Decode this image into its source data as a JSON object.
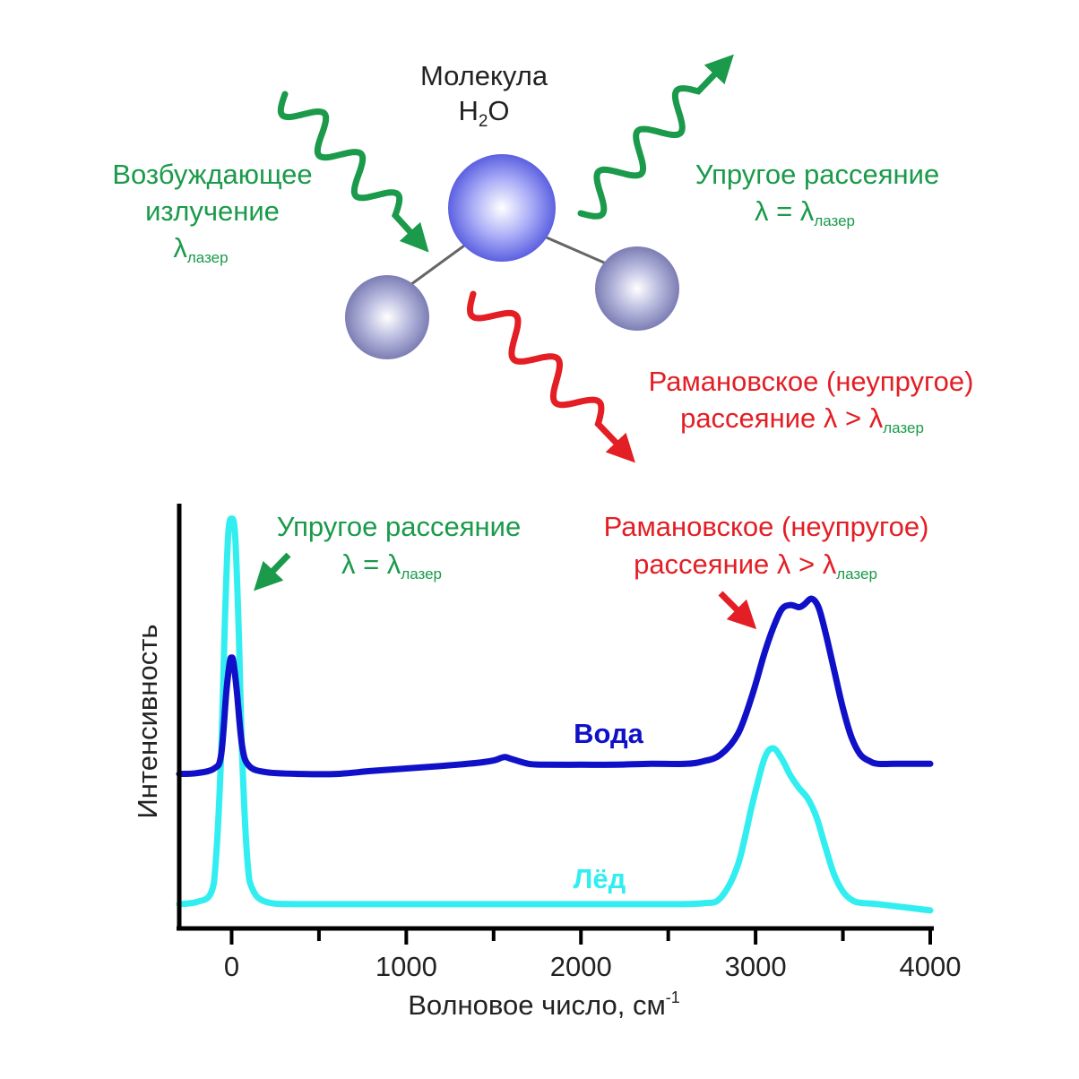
{
  "colors": {
    "green": "#1a9a4a",
    "red": "#e31e24",
    "water": "#1010c8",
    "ice": "#33eef0",
    "axis": "#000000",
    "text": "#222222",
    "bond": "#666666",
    "atom_big": "#8a8ef0",
    "atom_small": "#a6a8d6"
  },
  "diagram": {
    "molecule_label_line1": "Молекула",
    "molecule_label_h": "H",
    "molecule_label_sub": "2",
    "molecule_label_o": "O",
    "excitation_line1": "Возбуждающее",
    "excitation_line2": "излучение",
    "lambda": "λ",
    "laser_sub": "лазер",
    "elastic_title": "Упругое рассеяние",
    "elastic_eq": "λ = λ",
    "raman_line1": "Рамановское (неупругое)",
    "raman_line2": "рассеяние λ > λ"
  },
  "chart_data": {
    "type": "line",
    "xlabel": "Волновое число, см",
    "xlabel_sup": "-1",
    "ylabel": "Интенсивность",
    "xlim": [
      -300,
      4000
    ],
    "ylim": [
      0,
      100
    ],
    "xticks": [
      0,
      1000,
      2000,
      3000,
      4000
    ],
    "minor_ticks": [
      500,
      1500,
      2500,
      3500
    ],
    "series": [
      {
        "name": "Вода",
        "color": "#1010c8",
        "points": [
          [
            -300,
            35.4
          ],
          [
            -200,
            35.6
          ],
          [
            -100,
            36.7
          ],
          [
            -60,
            40
          ],
          [
            -30,
            55
          ],
          [
            -10,
            62
          ],
          [
            0,
            63
          ],
          [
            10,
            62
          ],
          [
            30,
            55
          ],
          [
            60,
            42
          ],
          [
            100,
            37.3
          ],
          [
            200,
            35.8
          ],
          [
            400,
            35.4
          ],
          [
            600,
            35.4
          ],
          [
            800,
            36.1
          ],
          [
            1000,
            36.7
          ],
          [
            1200,
            37.3
          ],
          [
            1400,
            38
          ],
          [
            1500,
            38.6
          ],
          [
            1560,
            39.4
          ],
          [
            1600,
            39
          ],
          [
            1700,
            37.8
          ],
          [
            1800,
            37.6
          ],
          [
            2000,
            37.6
          ],
          [
            2200,
            37.6
          ],
          [
            2400,
            37.8
          ],
          [
            2600,
            37.8
          ],
          [
            2700,
            38.4
          ],
          [
            2800,
            40
          ],
          [
            2900,
            45
          ],
          [
            2980,
            54
          ],
          [
            3050,
            64
          ],
          [
            3100,
            70
          ],
          [
            3150,
            74.5
          ],
          [
            3200,
            75.5
          ],
          [
            3250,
            75
          ],
          [
            3280,
            75.7
          ],
          [
            3320,
            77
          ],
          [
            3360,
            75
          ],
          [
            3400,
            69
          ],
          [
            3450,
            60
          ],
          [
            3500,
            51
          ],
          [
            3550,
            44
          ],
          [
            3600,
            40
          ],
          [
            3650,
            38.5
          ],
          [
            3700,
            37.8
          ],
          [
            3800,
            37.8
          ],
          [
            4000,
            37.8
          ]
        ]
      },
      {
        "name": "Лёд",
        "color": "#33eef0",
        "points": [
          [
            -300,
            4.5
          ],
          [
            -200,
            5
          ],
          [
            -120,
            7
          ],
          [
            -90,
            15
          ],
          [
            -60,
            40
          ],
          [
            -40,
            70
          ],
          [
            -20,
            92
          ],
          [
            0,
            96
          ],
          [
            20,
            92
          ],
          [
            40,
            70
          ],
          [
            60,
            40
          ],
          [
            90,
            15
          ],
          [
            120,
            8
          ],
          [
            200,
            5
          ],
          [
            400,
            4.5
          ],
          [
            1000,
            4.5
          ],
          [
            2000,
            4.5
          ],
          [
            2500,
            4.5
          ],
          [
            2700,
            4.7
          ],
          [
            2800,
            6
          ],
          [
            2900,
            14
          ],
          [
            2980,
            28
          ],
          [
            3050,
            39
          ],
          [
            3100,
            41.5
          ],
          [
            3150,
            39
          ],
          [
            3200,
            35
          ],
          [
            3250,
            32
          ],
          [
            3300,
            29.5
          ],
          [
            3350,
            25
          ],
          [
            3400,
            18
          ],
          [
            3450,
            11.5
          ],
          [
            3500,
            7.5
          ],
          [
            3550,
            5.5
          ],
          [
            3600,
            4.8
          ],
          [
            3700,
            4.5
          ],
          [
            4000,
            3
          ]
        ]
      }
    ],
    "annotations": {
      "elastic_title": "Упругое рассеяние",
      "elastic_eq": "λ = λ",
      "laser_sub": "лазер",
      "raman_line1": "Рамановское (неупругое)",
      "raman_line2": "рассеяние λ > λ"
    }
  }
}
